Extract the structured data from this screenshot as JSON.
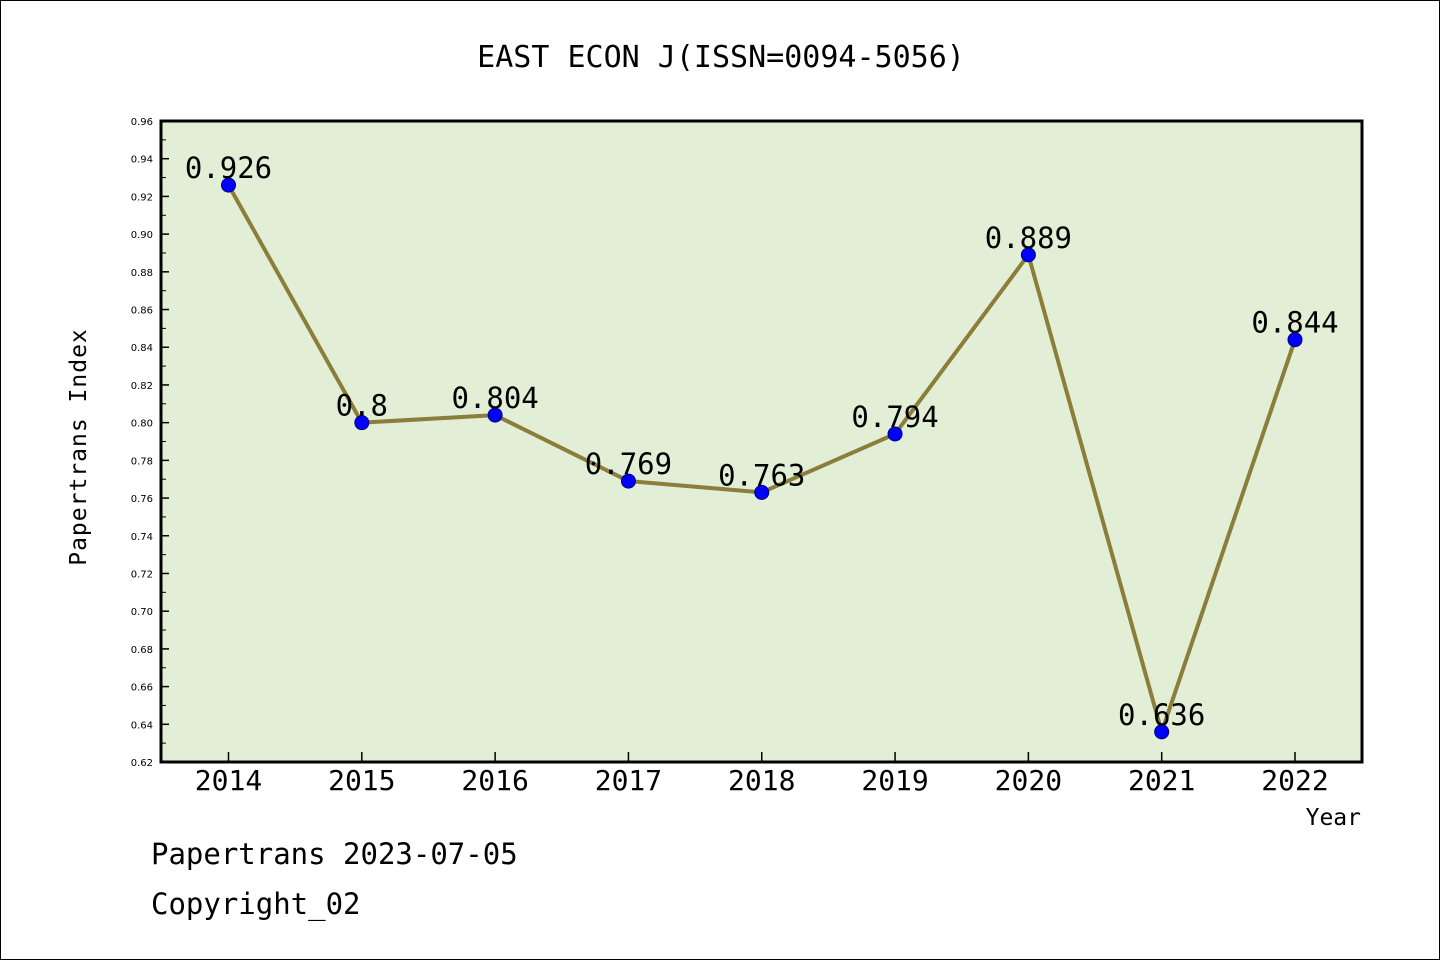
{
  "chart_data": {
    "type": "line",
    "title": "EAST ECON J(ISSN=0094-5056)",
    "xlabel": "Year",
    "ylabel": "Papertrans Index",
    "categories": [
      "2014",
      "2015",
      "2016",
      "2017",
      "2018",
      "2019",
      "2020",
      "2021",
      "2022"
    ],
    "series": [
      {
        "values": [
          0.926,
          0.8,
          0.804,
          0.769,
          0.763,
          0.794,
          0.889,
          0.636,
          0.844
        ],
        "data_labels": [
          "0.926",
          "0.8",
          "0.804",
          "0.769",
          "0.763",
          "0.794",
          "0.889",
          "0.636",
          "0.844"
        ],
        "line_color": "#8b7d3a",
        "marker_color": "#0000ff"
      }
    ],
    "ylim": [
      0.62,
      0.96
    ],
    "yticks": [
      "0.62",
      "0.64",
      "0.66",
      "0.68",
      "0.70",
      "0.72",
      "0.74",
      "0.76",
      "0.78",
      "0.80",
      "0.82",
      "0.84",
      "0.86",
      "0.88",
      "0.90",
      "0.92",
      "0.94",
      "0.96"
    ],
    "grid": false,
    "plot_background": "#e2efd6"
  },
  "footer": {
    "line1": "Papertrans 2023-07-05",
    "line2": "Copyright_02"
  }
}
